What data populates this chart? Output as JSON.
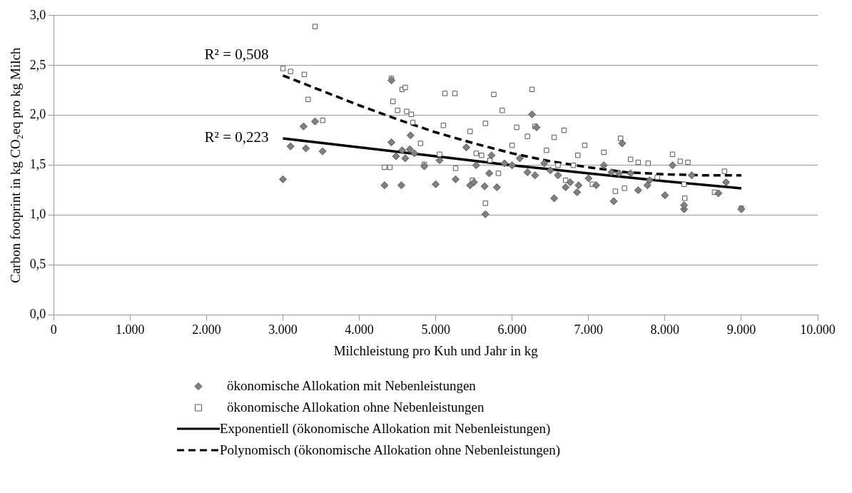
{
  "chart_data": {
    "type": "scatter",
    "xlabel": "Milchleistung pro Kuh und Jahr in kg",
    "ylabel": "Carbon footprint in kg CO₂eq pro kg Milch",
    "xlim": [
      0,
      10000
    ],
    "ylim": [
      0,
      3
    ],
    "xticks": [
      0,
      {
        "value": 1000,
        "label": "1.000"
      },
      {
        "value": 2000,
        "label": "2.000"
      },
      {
        "value": 3000,
        "label": "3.000"
      },
      {
        "value": 4000,
        "label": "4.000"
      },
      {
        "value": 5000,
        "label": "5.000"
      },
      {
        "value": 6000,
        "label": "6.000"
      },
      {
        "value": 7000,
        "label": "7.000"
      },
      {
        "value": 8000,
        "label": "8.000"
      },
      {
        "value": 9000,
        "label": "9.000"
      },
      {
        "value": 10000,
        "label": "10.000"
      }
    ],
    "yticks": [
      {
        "value": 0,
        "label": "0,0"
      },
      {
        "value": 0.5,
        "label": "0,5"
      },
      {
        "value": 1,
        "label": "1,0"
      },
      {
        "value": 1.5,
        "label": "1,5"
      },
      {
        "value": 2,
        "label": "2,0"
      },
      {
        "value": 2.5,
        "label": "2,5"
      },
      {
        "value": 3,
        "label": "3,0"
      }
    ],
    "grid": "y",
    "legend": "bottom",
    "series": [
      {
        "name": "ökonomische Allokation mit Nebenleistungen",
        "type": "scatter",
        "marker": "diamond",
        "color": "#808080",
        "x": [
          3000,
          3100,
          3270,
          3300,
          3420,
          3520,
          4330,
          4420,
          4420,
          4480,
          4550,
          4560,
          4600,
          4660,
          4670,
          4720,
          4850,
          5000,
          5050,
          5260,
          5400,
          5450,
          5500,
          5530,
          5640,
          5650,
          5700,
          5730,
          5800,
          5900,
          6000,
          6100,
          6200,
          6260,
          6300,
          6320,
          6420,
          6500,
          6550,
          6600,
          6700,
          6760,
          6850,
          6870,
          7000,
          7100,
          7200,
          7300,
          7330,
          7400,
          7440,
          7550,
          7650,
          7770,
          7800,
          8000,
          8100,
          8250,
          8250,
          8350,
          8700,
          8800,
          9000
        ],
        "values": [
          1.36,
          1.69,
          1.89,
          1.67,
          1.94,
          1.64,
          1.3,
          2.35,
          1.73,
          1.59,
          1.3,
          1.65,
          1.57,
          1.66,
          1.8,
          1.62,
          1.49,
          1.31,
          1.55,
          1.36,
          1.68,
          1.3,
          1.33,
          1.5,
          1.29,
          1.01,
          1.42,
          1.6,
          1.28,
          1.52,
          1.5,
          1.57,
          1.43,
          2.01,
          1.4,
          1.88,
          1.52,
          1.45,
          1.17,
          1.4,
          1.28,
          1.33,
          1.23,
          1.3,
          1.37,
          1.3,
          1.5,
          1.43,
          1.14,
          1.42,
          1.72,
          1.42,
          1.25,
          1.3,
          1.35,
          1.2,
          1.5,
          1.06,
          1.1,
          1.4,
          1.22,
          1.33,
          1.06
        ]
      },
      {
        "name": "ökonomische Allokation ohne Nebenleistungen",
        "type": "scatter",
        "marker": "square",
        "color": "#ffffff",
        "x": [
          3000,
          3100,
          3280,
          3330,
          3420,
          3520,
          4330,
          4400,
          4420,
          4440,
          4500,
          4560,
          4600,
          4620,
          4680,
          4700,
          4800,
          4850,
          5050,
          5100,
          5120,
          5250,
          5260,
          5450,
          5480,
          5530,
          5600,
          5650,
          5650,
          5710,
          5760,
          5820,
          5870,
          6000,
          6060,
          6200,
          6260,
          6300,
          6450,
          6550,
          6600,
          6680,
          6700,
          6800,
          6860,
          6950,
          7050,
          7200,
          7350,
          7420,
          7470,
          7550,
          7650,
          7780,
          7900,
          8100,
          8200,
          8250,
          8260,
          8300,
          8650,
          8780,
          9000
        ],
        "values": [
          2.47,
          2.44,
          2.41,
          2.16,
          2.89,
          1.95,
          1.48,
          1.48,
          2.37,
          2.14,
          2.05,
          2.26,
          2.28,
          2.04,
          2.01,
          1.93,
          1.72,
          1.51,
          1.61,
          1.9,
          2.22,
          2.22,
          1.47,
          1.84,
          1.35,
          1.62,
          1.6,
          1.92,
          1.12,
          1.55,
          2.21,
          1.42,
          2.05,
          1.7,
          1.88,
          1.79,
          2.26,
          1.89,
          1.65,
          1.78,
          1.5,
          1.85,
          1.35,
          1.5,
          1.6,
          1.7,
          1.31,
          1.63,
          1.24,
          1.77,
          1.27,
          1.56,
          1.53,
          1.52,
          1.38,
          1.61,
          1.54,
          1.31,
          1.17,
          1.53,
          1.23,
          1.44,
          1.07
        ]
      },
      {
        "name": "Exponentiell (ökonomische Allokation mit Nebenleistungen)",
        "type": "line",
        "line_style": "solid",
        "marker": "none",
        "color": "#000000",
        "x": [
          3000,
          4000,
          5000,
          6000,
          7000,
          8000,
          9000
        ],
        "values": [
          1.77,
          1.68,
          1.59,
          1.5,
          1.42,
          1.34,
          1.27
        ]
      },
      {
        "name": "Polynomisch (ökonomische Allokation ohne Nebenleistungen)",
        "type": "line",
        "line_style": "dashed",
        "marker": "none",
        "color": "#000000",
        "x": [
          3000,
          3500,
          4000,
          4500,
          5000,
          5500,
          6000,
          6500,
          7000,
          7500,
          8000,
          8500,
          9000
        ],
        "values": [
          2.4,
          2.25,
          2.1,
          1.96,
          1.83,
          1.72,
          1.62,
          1.54,
          1.48,
          1.43,
          1.41,
          1.4,
          1.4
        ]
      }
    ],
    "annotations": [
      "R² = 0,508",
      "R² = 0,223"
    ]
  }
}
